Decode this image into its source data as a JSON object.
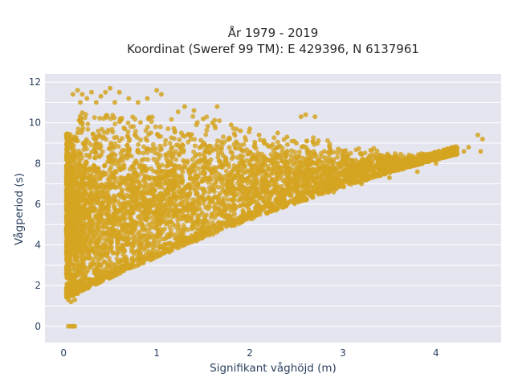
{
  "chart_data": {
    "type": "scatter",
    "title": "År 1979 - 2019",
    "subtitle": "Koordinat (Sweref 99 TM): E 429396, N 6137961",
    "xlabel": "Signifikant våghöjd (m)",
    "ylabel": "Vågperiod (s)",
    "xlim": [
      -0.2,
      4.7
    ],
    "ylim": [
      -0.8,
      12.4
    ],
    "xticks": [
      "0",
      "1",
      "2",
      "3",
      "4"
    ],
    "yticks": [
      "0",
      "2",
      "4",
      "6",
      "8",
      "10",
      "12"
    ],
    "grid": true,
    "legend": "none",
    "marker_color": "#d4a420",
    "plot_background": "#e5e5f0",
    "series": [
      {
        "points": [
          [
            0.05,
            0.0
          ],
          [
            0.08,
            0.0
          ],
          [
            0.1,
            0.0
          ],
          [
            0.12,
            0.0
          ],
          [
            0.05,
            1.3
          ],
          [
            0.08,
            1.2
          ],
          [
            0.1,
            1.5
          ],
          [
            0.12,
            1.3
          ],
          [
            0.15,
            1.6
          ],
          [
            0.1,
            2.0
          ],
          [
            0.07,
            2.5
          ],
          [
            0.06,
            3.0
          ],
          [
            0.1,
            4.0
          ],
          [
            0.05,
            5.0
          ],
          [
            0.08,
            6.0
          ],
          [
            0.06,
            7.0
          ],
          [
            0.1,
            7.8
          ],
          [
            0.05,
            8.5
          ],
          [
            0.08,
            8.9
          ],
          [
            0.2,
            1.8
          ],
          [
            0.3,
            2.2
          ],
          [
            0.5,
            2.6
          ],
          [
            0.7,
            2.9
          ],
          [
            0.9,
            3.3
          ],
          [
            1.1,
            3.8
          ],
          [
            1.3,
            4.3
          ],
          [
            1.5,
            4.6
          ],
          [
            1.8,
            5.0
          ],
          [
            2.0,
            5.5
          ],
          [
            2.3,
            5.8
          ],
          [
            2.6,
            6.2
          ],
          [
            2.9,
            6.6
          ],
          [
            3.2,
            7.0
          ],
          [
            3.5,
            7.3
          ],
          [
            3.8,
            7.6
          ],
          [
            0.15,
            9.5
          ],
          [
            0.2,
            10.0
          ],
          [
            0.2,
            10.5
          ],
          [
            0.18,
            11.0
          ],
          [
            0.2,
            11.4
          ],
          [
            0.25,
            11.2
          ],
          [
            0.3,
            11.5
          ],
          [
            0.35,
            11.0
          ],
          [
            0.4,
            11.3
          ],
          [
            0.5,
            11.7
          ],
          [
            0.55,
            11.0
          ],
          [
            0.6,
            11.5
          ],
          [
            0.7,
            11.2
          ],
          [
            0.8,
            11.0
          ],
          [
            0.9,
            11.2
          ],
          [
            1.0,
            11.6
          ],
          [
            1.05,
            11.4
          ],
          [
            1.3,
            10.8
          ],
          [
            1.4,
            10.6
          ],
          [
            1.5,
            10.2
          ],
          [
            1.6,
            10.0
          ],
          [
            1.8,
            9.9
          ],
          [
            1.9,
            9.6
          ],
          [
            2.0,
            9.7
          ],
          [
            2.1,
            9.4
          ],
          [
            2.3,
            9.5
          ],
          [
            2.4,
            9.3
          ],
          [
            2.5,
            9.0
          ],
          [
            2.6,
            8.8
          ],
          [
            2.8,
            8.6
          ],
          [
            2.9,
            8.2
          ],
          [
            3.0,
            8.3
          ],
          [
            3.2,
            8.0
          ],
          [
            3.4,
            7.7
          ],
          [
            3.5,
            8.3
          ],
          [
            3.6,
            7.9
          ],
          [
            3.7,
            8.2
          ],
          [
            3.8,
            8.0
          ],
          [
            3.9,
            8.4
          ],
          [
            4.0,
            8.2
          ],
          [
            4.1,
            8.5
          ],
          [
            4.2,
            8.7
          ],
          [
            4.3,
            8.6
          ],
          [
            4.45,
            9.4
          ],
          [
            4.5,
            9.2
          ],
          [
            4.48,
            8.6
          ],
          [
            4.35,
            8.8
          ],
          [
            4.0,
            8.0
          ],
          [
            3.85,
            8.3
          ],
          [
            2.55,
            10.3
          ],
          [
            2.6,
            10.4
          ],
          [
            2.7,
            10.3
          ],
          [
            1.65,
            10.8
          ],
          [
            0.1,
            11.4
          ],
          [
            0.15,
            11.6
          ],
          [
            0.45,
            11.5
          ]
        ]
      }
    ]
  }
}
